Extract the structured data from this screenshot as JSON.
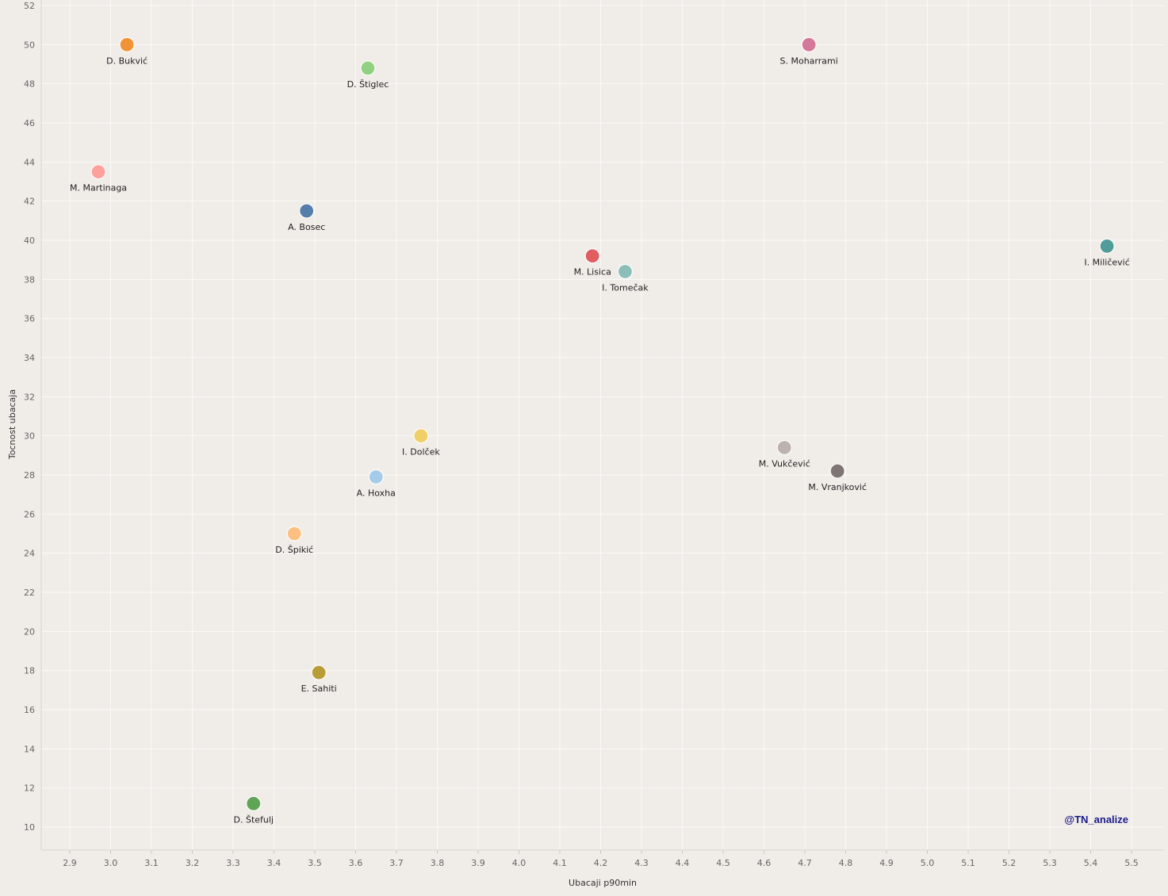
{
  "chart_data": {
    "type": "scatter",
    "title": "",
    "xlabel": "Ubacaji p90min",
    "ylabel": "Tocnost ubacaja",
    "xlim": [
      2.85,
      5.55
    ],
    "ylim": [
      9,
      52
    ],
    "x_ticks": [
      2.9,
      3.0,
      3.1,
      3.2,
      3.3,
      3.4,
      3.5,
      3.6,
      3.7,
      3.8,
      3.9,
      4.0,
      4.1,
      4.2,
      4.3,
      4.4,
      4.5,
      4.6,
      4.7,
      4.8,
      4.9,
      5.0,
      5.1,
      5.2,
      5.3,
      5.4,
      5.5
    ],
    "x_tick_labels": [
      "2.9",
      "3.0",
      "3.1",
      "3.2",
      "3.3",
      "3.4",
      "3.5",
      "3.6",
      "3.7",
      "3.8",
      "3.9",
      "4.0",
      "4.1",
      "4.2",
      "4.3",
      "4.4",
      "4.5",
      "4.6",
      "4.7",
      "4.8",
      "4.9",
      "5.0",
      "5.1",
      "5.2",
      "5.3",
      "5.4",
      "5.5"
    ],
    "y_ticks": [
      10,
      12,
      14,
      16,
      18,
      20,
      22,
      24,
      26,
      28,
      30,
      32,
      34,
      36,
      38,
      40,
      42,
      44,
      46,
      48,
      50,
      52
    ],
    "y_tick_labels": [
      "10",
      "12",
      "14",
      "16",
      "18",
      "20",
      "22",
      "24",
      "26",
      "28",
      "30",
      "32",
      "34",
      "36",
      "38",
      "40",
      "42",
      "44",
      "46",
      "48",
      "50",
      "52"
    ],
    "grid": true,
    "legend": "none",
    "points": [
      {
        "label": "D. Bukvić",
        "x": 3.04,
        "y": 50.0,
        "color": "#f28e2b"
      },
      {
        "label": "D. Štiglec",
        "x": 3.63,
        "y": 48.8,
        "color": "#8cd17d"
      },
      {
        "label": "S. Moharrami",
        "x": 4.71,
        "y": 50.0,
        "color": "#d37295"
      },
      {
        "label": "M. Martinaga",
        "x": 2.97,
        "y": 43.5,
        "color": "#ff9d9a"
      },
      {
        "label": "A. Bosec",
        "x": 3.48,
        "y": 41.5,
        "color": "#4e79a7"
      },
      {
        "label": "I. Miličević",
        "x": 5.44,
        "y": 39.7,
        "color": "#499894"
      },
      {
        "label": "M. Lisica",
        "x": 4.18,
        "y": 39.2,
        "color": "#e15759"
      },
      {
        "label": "I. Tomečak",
        "x": 4.26,
        "y": 38.4,
        "color": "#86bcb6"
      },
      {
        "label": "I. Dolček",
        "x": 3.76,
        "y": 30.0,
        "color": "#f1ce63"
      },
      {
        "label": "M. Vukčević",
        "x": 4.65,
        "y": 29.4,
        "color": "#bab0ac"
      },
      {
        "label": "M. Vranjković",
        "x": 4.78,
        "y": 28.2,
        "color": "#79706e"
      },
      {
        "label": "A. Hoxha",
        "x": 3.65,
        "y": 27.9,
        "color": "#a0cbe8"
      },
      {
        "label": "D. Špikić",
        "x": 3.45,
        "y": 25.0,
        "color": "#ffbe7d"
      },
      {
        "label": "E. Sahiti",
        "x": 3.51,
        "y": 17.9,
        "color": "#b6992d"
      },
      {
        "label": "D. Štefulj",
        "x": 3.35,
        "y": 11.2,
        "color": "#59a14f"
      }
    ]
  },
  "watermark": "@TN_analize",
  "colors": {
    "background": "#f0ece8",
    "grid": "#ffffff",
    "tick_text": "#666666"
  }
}
